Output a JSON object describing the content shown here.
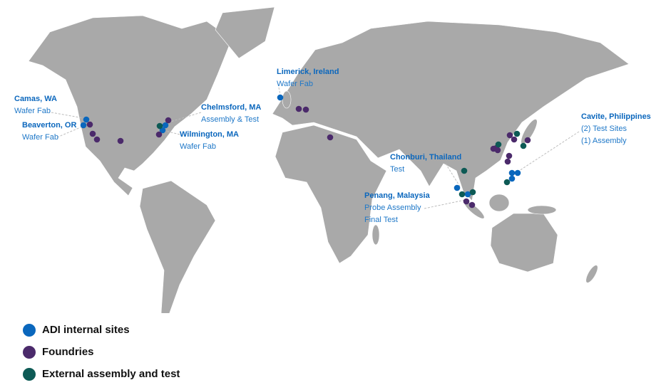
{
  "colors": {
    "adi": "#0a67bd",
    "foundry": "#4b2a6b",
    "external": "#0d5a55",
    "land": "#a9a9a9",
    "label": "#1f78c8",
    "leader": "#bdbdbd"
  },
  "labels": [
    {
      "title": "Camas, WA",
      "lines": [
        "Wafer Fab"
      ]
    },
    {
      "title": "Beaverton, OR",
      "lines": [
        "Wafer Fab"
      ]
    },
    {
      "title": "Chelmsford, MA",
      "lines": [
        "Assembly & Test"
      ]
    },
    {
      "title": "Wilmington, MA",
      "lines": [
        "Wafer Fab"
      ]
    },
    {
      "title": "Limerick, Ireland",
      "lines": [
        "Wafer Fab"
      ]
    },
    {
      "title": "Chonburi, Thailand",
      "lines": [
        "Test"
      ]
    },
    {
      "title": "Penang, Malaysia",
      "lines": [
        "Probe  Assembly",
        "Final Test"
      ]
    },
    {
      "title": "Cavite, Philippines",
      "lines": [
        "(2) Test Sites",
        "(1) Assembly"
      ]
    }
  ],
  "site_counts": {
    "adi": 10,
    "foundry": 19,
    "external": 8
  },
  "legend": [
    {
      "key": "adi",
      "label": "ADI internal sites"
    },
    {
      "key": "foundry",
      "label": "Foundries"
    },
    {
      "key": "external",
      "label": "External assembly and test"
    }
  ]
}
